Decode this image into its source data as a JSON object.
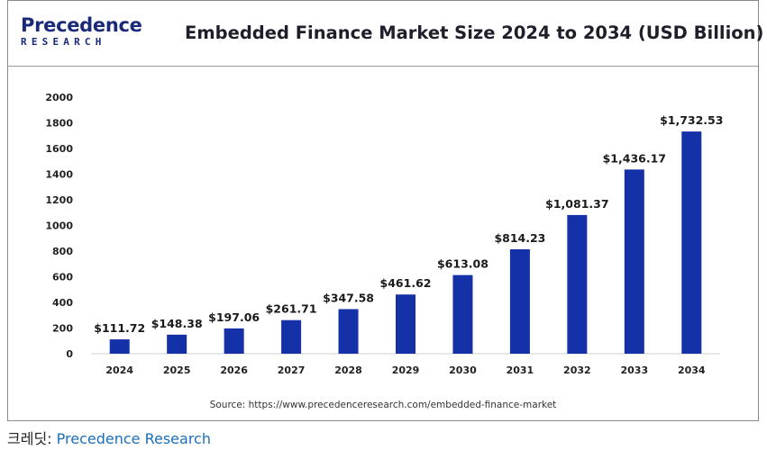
{
  "header": {
    "logo_top": "Precedence",
    "logo_bottom": "RESEARCH",
    "title": "Embedded Finance Market Size 2024 to 2034 (USD Billion)"
  },
  "chart_data": {
    "type": "bar",
    "title": "Embedded Finance Market Size 2024 to 2034 (USD Billion)",
    "categories": [
      "2024",
      "2025",
      "2026",
      "2027",
      "2028",
      "2029",
      "2030",
      "2031",
      "2032",
      "2033",
      "2034"
    ],
    "values": [
      111.72,
      148.38,
      197.06,
      261.71,
      347.58,
      461.62,
      613.08,
      814.23,
      1081.37,
      1436.17,
      1732.53
    ],
    "data_labels": [
      "$111.72",
      "$148.38",
      "$197.06",
      "$261.71",
      "$347.58",
      "$461.62",
      "$613.08",
      "$814.23",
      "$1,081.37",
      "$1,436.17",
      "$1,732.53"
    ],
    "ylim": [
      0,
      2000
    ],
    "yticks": [
      "0",
      "200",
      "400",
      "600",
      "800",
      "1000",
      "1200",
      "1400",
      "1600",
      "1800",
      "2000"
    ],
    "bar_color": "#1531a8",
    "grid": false,
    "legend": "none"
  },
  "footer": {
    "source": "Source: https://www.precedenceresearch.com/embedded-finance-market"
  },
  "credit": {
    "prefix": "크레딧: ",
    "link_text": "Precedence Research",
    "link_color": "#1a6fb8"
  }
}
